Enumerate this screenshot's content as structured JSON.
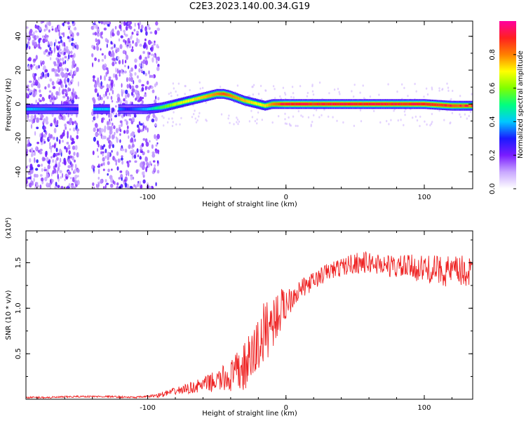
{
  "chart_data": [
    {
      "type": "heatmap",
      "title": "C2E3.2023.140.00.34.G19",
      "xlabel": "Height of straight line (km)",
      "ylabel": "Frequency (Hz)",
      "xlim": [
        -188,
        135
      ],
      "ylim": [
        -50,
        49
      ],
      "xticks": [
        -100,
        0,
        100
      ],
      "xtick_labels": [
        "-100",
        "0",
        "100"
      ],
      "yticks": [
        -40,
        -20,
        0,
        20,
        40
      ],
      "ytick_labels": [
        "-40",
        "-20",
        "0",
        "20",
        "40"
      ],
      "colorbar": {
        "label": "Normalized spectral amplitude",
        "range": [
          0,
          1
        ],
        "ticks": [
          0.0,
          0.2,
          0.4,
          0.6,
          0.8
        ],
        "tick_labels": [
          "0.0",
          "0.2",
          "0.4",
          "0.6",
          "0.8"
        ],
        "colors": [
          "#ffffff",
          "#c9a8ff",
          "#7a1cff",
          "#1a1aff",
          "#00c8ff",
          "#00ff80",
          "#80ff00",
          "#ffff00",
          "#ff8000",
          "#ff2020",
          "#ff00a0"
        ]
      },
      "ridge": {
        "x": [
          -188,
          -150,
          -145,
          -135,
          -125,
          -115,
          -100,
          -90,
          -80,
          -70,
          -60,
          -50,
          -45,
          -40,
          -30,
          -20,
          -15,
          -10,
          0,
          10,
          20,
          40,
          60,
          80,
          100,
          120,
          135
        ],
        "freq": [
          -3,
          -3,
          -3,
          -3,
          -3,
          -3,
          -3,
          -2,
          0,
          2,
          4,
          6,
          6,
          5,
          2,
          0,
          -1,
          0,
          0,
          0,
          0,
          0,
          0,
          0,
          0,
          -1,
          -1
        ],
        "amplitude": [
          0.4,
          0.3,
          0.4,
          0.4,
          0.4,
          0.3,
          0.4,
          0.55,
          0.65,
          0.7,
          0.75,
          0.8,
          0.85,
          0.8,
          0.75,
          0.7,
          0.72,
          0.8,
          0.9,
          0.9,
          0.88,
          0.9,
          0.9,
          0.88,
          0.9,
          0.85,
          0.8
        ]
      },
      "noise_regions": [
        {
          "x_start": -188,
          "x_end": -150
        },
        {
          "x_start": -140,
          "x_end": -92
        }
      ]
    },
    {
      "type": "line",
      "title": "",
      "xlabel": "Height of straight line (km)",
      "ylabel": "SNR (10 * v/v)",
      "scale_note": "(x10⁴)",
      "xlim": [
        -188,
        135
      ],
      "ylim": [
        0,
        1.85
      ],
      "xticks": [
        -100,
        0,
        100
      ],
      "xtick_labels": [
        "-100",
        "0",
        "100"
      ],
      "yticks": [
        0.5,
        1.0,
        1.5
      ],
      "ytick_labels": [
        "0.5",
        "1.0",
        "1.5"
      ],
      "color": "#ee2222",
      "series": [
        {
          "x": [
            -188,
            -170,
            -150,
            -130,
            -110,
            -100,
            -90,
            -80,
            -70,
            -60,
            -50,
            -40,
            -30,
            -25,
            -20,
            -15,
            -10,
            -5,
            0,
            5,
            10,
            15,
            20,
            25,
            30,
            40,
            50,
            60,
            70,
            80,
            90,
            100,
            110,
            120,
            130,
            135
          ],
          "y": [
            0.02,
            0.02,
            0.03,
            0.03,
            0.02,
            0.03,
            0.05,
            0.09,
            0.12,
            0.16,
            0.2,
            0.25,
            0.35,
            0.45,
            0.6,
            0.75,
            0.85,
            0.95,
            1.05,
            1.15,
            1.2,
            1.25,
            1.3,
            1.35,
            1.4,
            1.45,
            1.5,
            1.5,
            1.48,
            1.45,
            1.45,
            1.43,
            1.42,
            1.4,
            1.4,
            1.4
          ],
          "noise": [
            0.01,
            0.01,
            0.01,
            0.01,
            0.01,
            0.01,
            0.03,
            0.04,
            0.06,
            0.08,
            0.12,
            0.18,
            0.28,
            0.3,
            0.35,
            0.35,
            0.3,
            0.25,
            0.2,
            0.15,
            0.12,
            0.1,
            0.1,
            0.1,
            0.1,
            0.1,
            0.12,
            0.12,
            0.12,
            0.13,
            0.14,
            0.15,
            0.16,
            0.18,
            0.18,
            0.18
          ]
        }
      ]
    }
  ]
}
